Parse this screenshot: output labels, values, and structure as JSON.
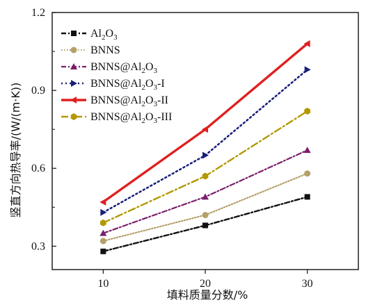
{
  "chart_data": {
    "type": "line",
    "xlabel": "填料质量分数/%",
    "ylabel": "竖直方向热导率/(W/(m·K))",
    "x": [
      10,
      20,
      30
    ],
    "x_ticks": [
      "10",
      "20",
      "30"
    ],
    "xlim": [
      5,
      35
    ],
    "ylim": [
      0.21,
      1.2
    ],
    "y_ticks": [
      "0.3",
      "0.6",
      "0.9",
      "1.2"
    ],
    "legend_position": "top-left",
    "grid": false,
    "series": [
      {
        "name": "Al2O3",
        "label_main": "Al",
        "label_sub1": "2",
        "label_mid": "O",
        "label_sub2": "3",
        "label_tail": "",
        "values": [
          0.28,
          0.38,
          0.49
        ],
        "color": "#111111",
        "marker": "square",
        "dash": "7,3,2,3",
        "width": 2.4
      },
      {
        "name": "BNNS",
        "label_main": "BNNS",
        "label_sub1": "",
        "label_mid": "",
        "label_sub2": "",
        "label_tail": "",
        "values": [
          0.32,
          0.42,
          0.58
        ],
        "color": "#b5a06a",
        "marker": "circle",
        "dash": "1.5,2.5",
        "width": 2.2
      },
      {
        "name": "BNNS@Al2O3",
        "label_main": "BNNS@Al",
        "label_sub1": "2",
        "label_mid": "O",
        "label_sub2": "3",
        "label_tail": "",
        "values": [
          0.35,
          0.49,
          0.67
        ],
        "color": "#7a1f6b",
        "marker": "triangle-up",
        "dash": "7,3,2,3",
        "width": 2.2
      },
      {
        "name": "BNNS@Al2O3-I",
        "label_main": "BNNS@Al",
        "label_sub1": "2",
        "label_mid": "O",
        "label_sub2": "3",
        "label_tail": "-I",
        "values": [
          0.43,
          0.65,
          0.98
        ],
        "color": "#1a1f7a",
        "marker": "triangle-right",
        "dash": "2,4",
        "width": 2.6
      },
      {
        "name": "BNNS@Al2O3-II",
        "label_main": "BNNS@Al",
        "label_sub1": "2",
        "label_mid": "O",
        "label_sub2": "3",
        "label_tail": "-II",
        "values": [
          0.47,
          0.75,
          1.08
        ],
        "color": "#e02020",
        "marker": "triangle-left",
        "dash": "",
        "width": 3.4
      },
      {
        "name": "BNNS@Al2O3-III",
        "label_main": "BNNS@Al",
        "label_sub1": "2",
        "label_mid": "O",
        "label_sub2": "3",
        "label_tail": "-III",
        "values": [
          0.39,
          0.57,
          0.82
        ],
        "color": "#b39800",
        "marker": "hexagon",
        "dash": "10,4,2,4",
        "width": 2.4
      }
    ]
  }
}
